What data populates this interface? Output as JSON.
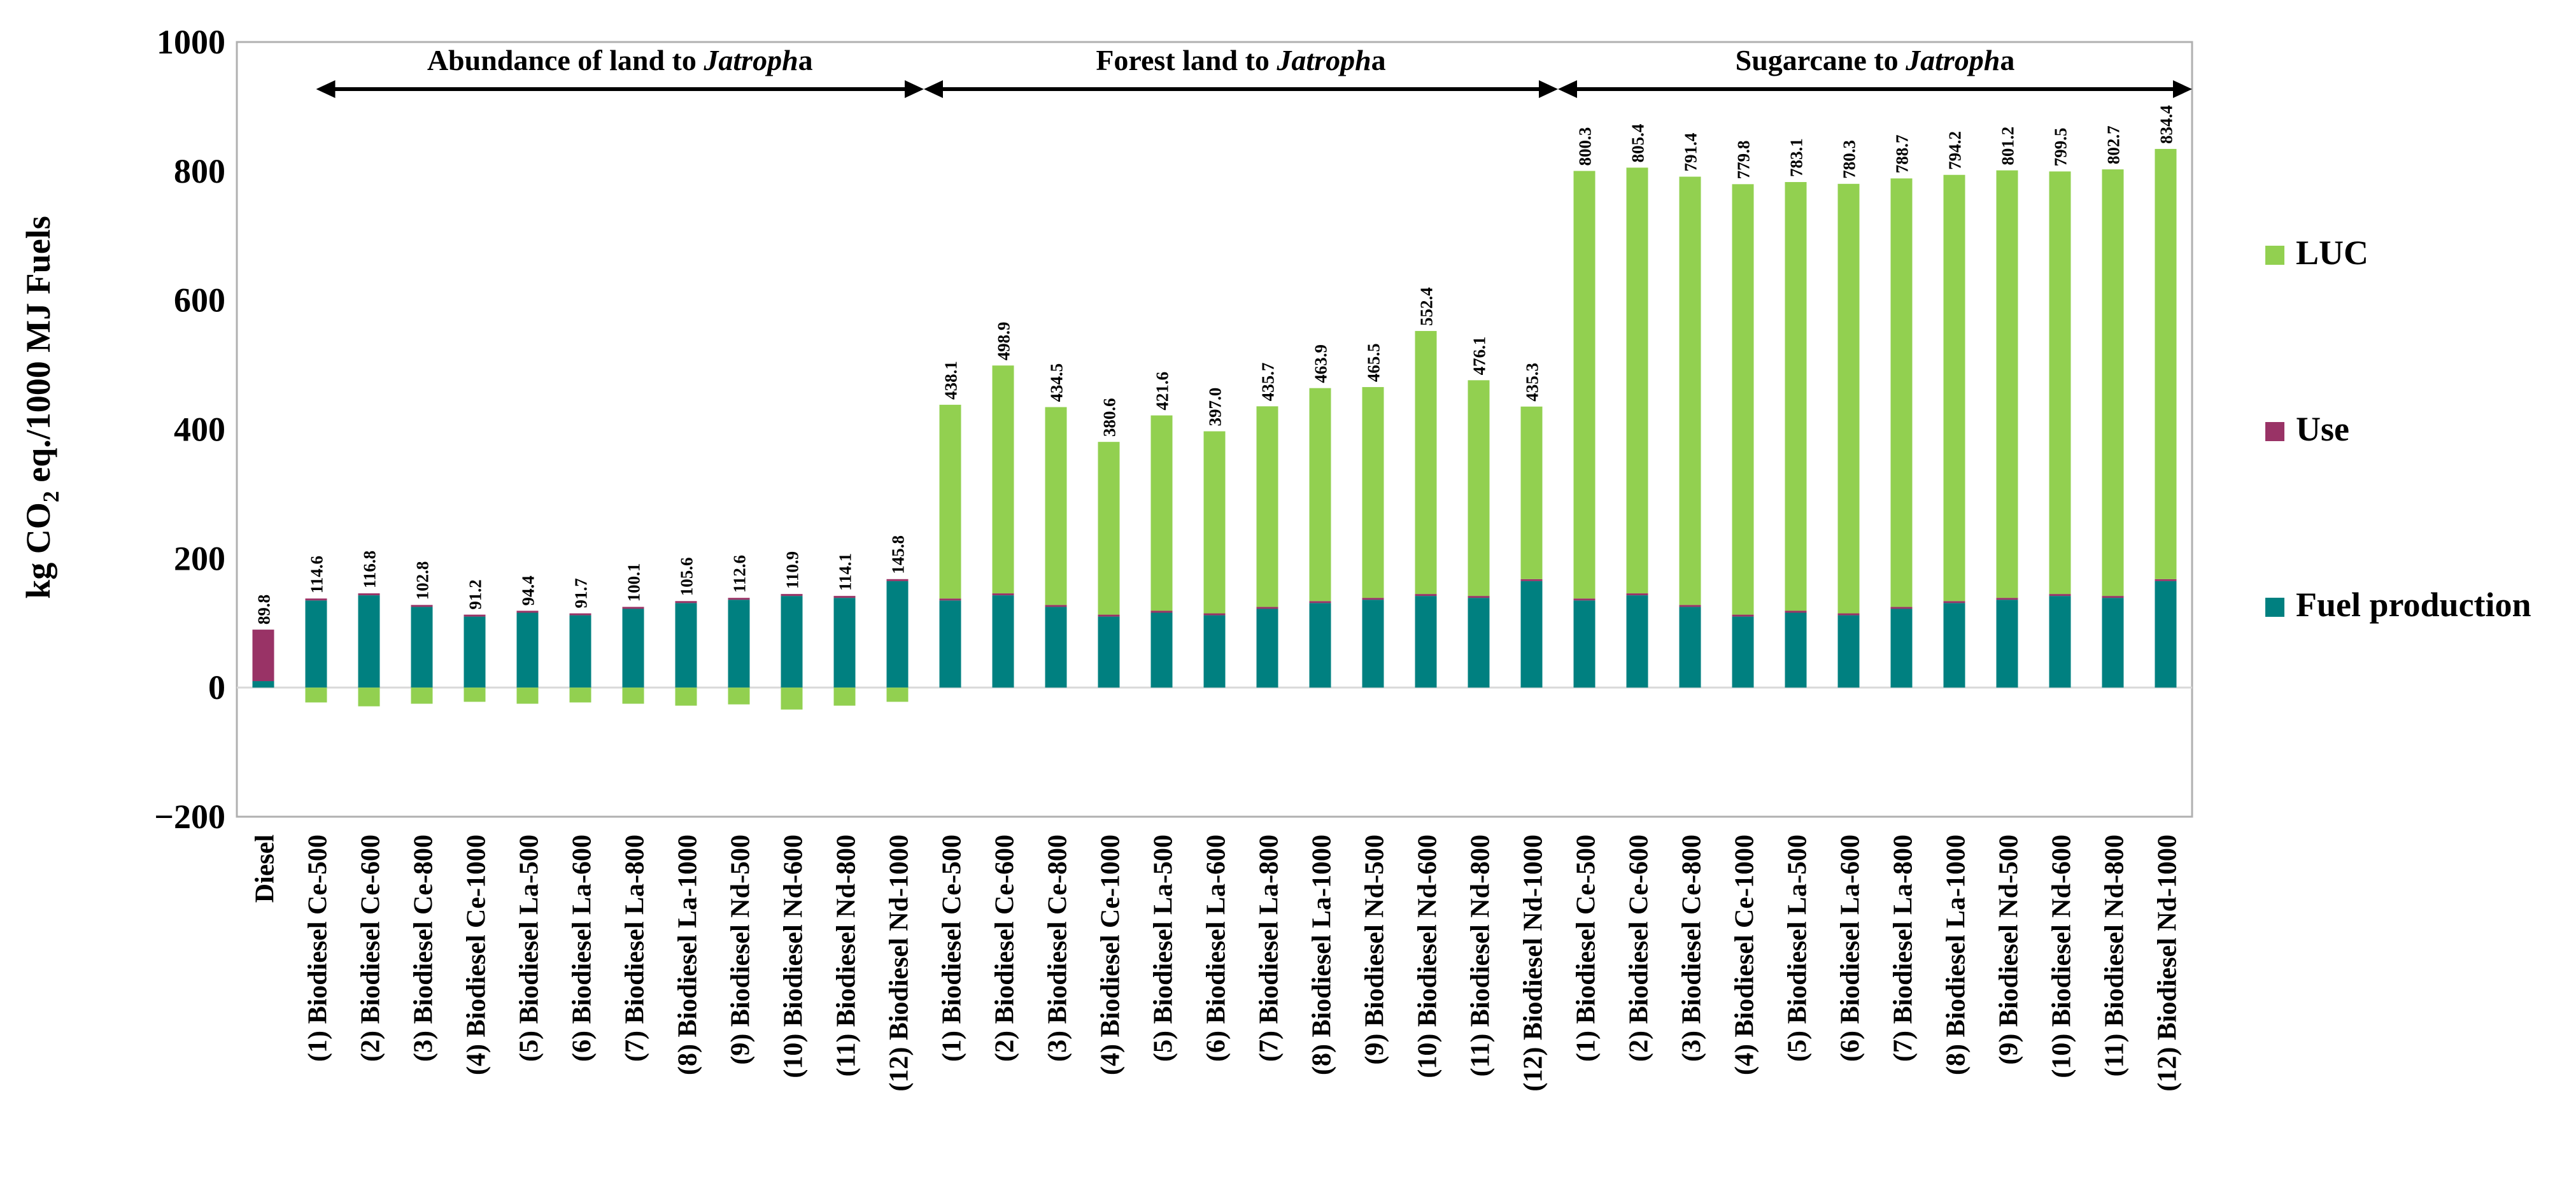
{
  "chart_data": {
    "type": "bar",
    "stacked": true,
    "ylabel": "kg CO2 eq./1000 MJ Fuels",
    "ylabel_main": "kg CO",
    "ylabel_sub": "2",
    "ylabel_rest": " eq./1000 MJ Fuels",
    "ylim": [
      -200,
      1000
    ],
    "yticks": [
      -200,
      0,
      200,
      400,
      600,
      800,
      1000
    ],
    "ytick_labels": [
      "−200",
      "0",
      "200",
      "400",
      "600",
      "800",
      "1000"
    ],
    "grid": false,
    "legend_position": "right",
    "legend": [
      "LUC",
      "Use",
      "Fuel production"
    ],
    "colors": {
      "LUC": "#92d050",
      "Use": "#993366",
      "Fuel production": "#008080"
    },
    "groups": [
      {
        "prefix": "Abundance of land to ",
        "italic": "Jatroph",
        "suffix": "a"
      },
      {
        "prefix": "Forest land to ",
        "italic": "Jatroph",
        "suffix": "a"
      },
      {
        "prefix": "Sugarcane to ",
        "italic": "Jatroph",
        "suffix": "a"
      }
    ],
    "categories": [
      "Diesel",
      "(1) Biodiesel Ce-500",
      "(2) Biodiesel Ce-600",
      "(3) Biodiesel Ce-800",
      "(4) Biodiesel Ce-1000",
      "(5) Biodiesel La-500",
      "(6) Biodiesel La-600",
      "(7) Biodiesel La-800",
      "(8) Biodiesel La-1000",
      "(9) Biodiesel Nd-500",
      "(10) Biodiesel Nd-600",
      "(11) Biodiesel Nd-800",
      "(12) Biodiesel Nd-1000",
      "(1) Biodiesel Ce-500",
      "(2) Biodiesel Ce-600",
      "(3) Biodiesel Ce-800",
      "(4) Biodiesel Ce-1000",
      "(5) Biodiesel La-500",
      "(6) Biodiesel La-600",
      "(7) Biodiesel La-800",
      "(8) Biodiesel La-1000",
      "(9) Biodiesel Nd-500",
      "(10) Biodiesel Nd-600",
      "(11) Biodiesel Nd-800",
      "(12) Biodiesel Nd-1000",
      "(1) Biodiesel Ce-500",
      "(2) Biodiesel Ce-600",
      "(3) Biodiesel Ce-800",
      "(4) Biodiesel Ce-1000",
      "(5) Biodiesel La-500",
      "(6) Biodiesel La-600",
      "(7) Biodiesel La-800",
      "(8) Biodiesel La-1000",
      "(9) Biodiesel Nd-500",
      "(10) Biodiesel Nd-600",
      "(11) Biodiesel Nd-800",
      "(12) Biodiesel Nd-1000"
    ],
    "series": [
      {
        "name": "Fuel production",
        "values": [
          10,
          135,
          143,
          125,
          110,
          116,
          112,
          122,
          131,
          136,
          142,
          139,
          165,
          135,
          143,
          125,
          110,
          116,
          112,
          122,
          131,
          136,
          142,
          139,
          165,
          135,
          143,
          125,
          110,
          116,
          112,
          122,
          131,
          136,
          142,
          139,
          165
        ]
      },
      {
        "name": "Use",
        "values": [
          79.8,
          3,
          3,
          3,
          3,
          3,
          3,
          3,
          3,
          3,
          3,
          3,
          3,
          3,
          3,
          3,
          3,
          3,
          3,
          3,
          3,
          3,
          3,
          3,
          3,
          3,
          3,
          3,
          3,
          3,
          3,
          3,
          3,
          3,
          3,
          3,
          3
        ]
      },
      {
        "name": "LUC",
        "values": [
          0,
          -23,
          -29,
          -25,
          -22,
          -25,
          -23,
          -25,
          -28,
          -26,
          -34,
          -28,
          -22,
          300.1,
          352.9,
          306.5,
          267.6,
          302.6,
          282,
          310.7,
          329.9,
          326.5,
          407.4,
          334.1,
          267.3,
          662.3,
          659.4,
          663.4,
          666.8,
          664.1,
          665.3,
          663.7,
          660.2,
          662.2,
          654.5,
          660.7,
          666.4
        ]
      }
    ],
    "totals": [
      "89.8",
      "114.6",
      "116.8",
      "102.8",
      "91.2",
      "94.4",
      "91.7",
      "100.1",
      "105.6",
      "112.6",
      "110.9",
      "114.1",
      "145.8",
      "438.1",
      "498.9",
      "434.5",
      "380.6",
      "421.6",
      "397.0",
      "435.7",
      "463.9",
      "465.5",
      "552.4",
      "476.1",
      "435.3",
      "800.3",
      "805.4",
      "791.4",
      "779.8",
      "783.1",
      "780.3",
      "788.7",
      "794.2",
      "801.2",
      "799.5",
      "802.7",
      "834.4"
    ]
  }
}
